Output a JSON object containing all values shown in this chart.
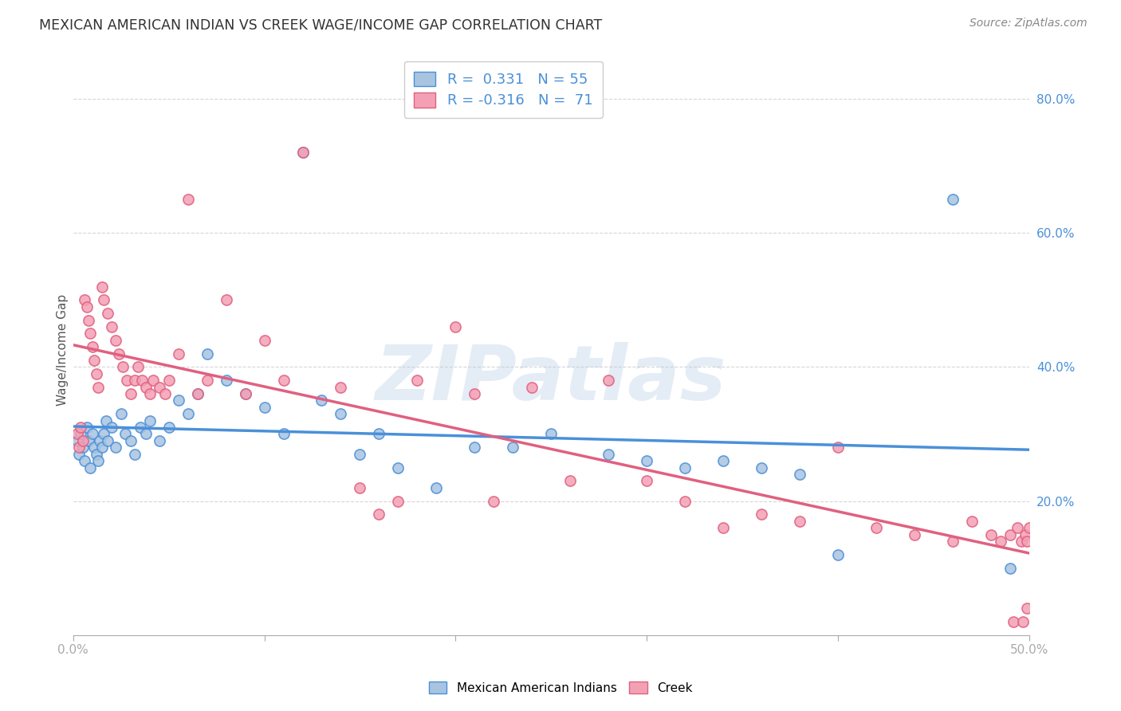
{
  "title": "MEXICAN AMERICAN INDIAN VS CREEK WAGE/INCOME GAP CORRELATION CHART",
  "source": "Source: ZipAtlas.com",
  "xlabel": "",
  "ylabel": "Wage/Income Gap",
  "xlim": [
    0.0,
    0.5
  ],
  "ylim": [
    0.0,
    0.85
  ],
  "xticks": [
    0.0,
    0.1,
    0.2,
    0.3,
    0.4,
    0.5
  ],
  "xtick_labels": [
    "0.0%",
    "",
    "",
    "",
    "",
    "50.0%"
  ],
  "yticks": [
    0.2,
    0.4,
    0.6,
    0.8
  ],
  "ytick_labels": [
    "20.0%",
    "40.0%",
    "60.0%",
    "80.0%"
  ],
  "blue_R": 0.331,
  "blue_N": 55,
  "pink_R": -0.316,
  "pink_N": 71,
  "blue_color": "#a8c4e0",
  "pink_color": "#f4a0b4",
  "blue_line_color": "#4a90d9",
  "pink_line_color": "#e06080",
  "legend_label_blue": "Mexican American Indians",
  "legend_label_pink": "Creek",
  "watermark": "ZIPatlas",
  "grid_color": "#cccccc",
  "background_color": "#ffffff",
  "blue_scatter_x": [
    0.002,
    0.003,
    0.004,
    0.005,
    0.006,
    0.007,
    0.008,
    0.009,
    0.01,
    0.011,
    0.012,
    0.013,
    0.014,
    0.015,
    0.016,
    0.017,
    0.018,
    0.02,
    0.022,
    0.025,
    0.027,
    0.03,
    0.032,
    0.035,
    0.038,
    0.04,
    0.045,
    0.05,
    0.055,
    0.06,
    0.065,
    0.07,
    0.08,
    0.09,
    0.1,
    0.11,
    0.12,
    0.13,
    0.14,
    0.15,
    0.16,
    0.17,
    0.19,
    0.21,
    0.23,
    0.25,
    0.28,
    0.3,
    0.32,
    0.34,
    0.36,
    0.38,
    0.4,
    0.46,
    0.49
  ],
  "blue_scatter_y": [
    0.29,
    0.27,
    0.3,
    0.28,
    0.26,
    0.31,
    0.29,
    0.25,
    0.3,
    0.28,
    0.27,
    0.26,
    0.29,
    0.28,
    0.3,
    0.32,
    0.29,
    0.31,
    0.28,
    0.33,
    0.3,
    0.29,
    0.27,
    0.31,
    0.3,
    0.32,
    0.29,
    0.31,
    0.35,
    0.33,
    0.36,
    0.42,
    0.38,
    0.36,
    0.34,
    0.3,
    0.72,
    0.35,
    0.33,
    0.27,
    0.3,
    0.25,
    0.22,
    0.28,
    0.28,
    0.3,
    0.27,
    0.26,
    0.25,
    0.26,
    0.25,
    0.24,
    0.12,
    0.65,
    0.1
  ],
  "pink_scatter_x": [
    0.002,
    0.003,
    0.004,
    0.005,
    0.006,
    0.007,
    0.008,
    0.009,
    0.01,
    0.011,
    0.012,
    0.013,
    0.015,
    0.016,
    0.018,
    0.02,
    0.022,
    0.024,
    0.026,
    0.028,
    0.03,
    0.032,
    0.034,
    0.036,
    0.038,
    0.04,
    0.042,
    0.045,
    0.048,
    0.05,
    0.055,
    0.06,
    0.065,
    0.07,
    0.08,
    0.09,
    0.1,
    0.11,
    0.12,
    0.14,
    0.15,
    0.16,
    0.17,
    0.18,
    0.2,
    0.21,
    0.22,
    0.24,
    0.26,
    0.28,
    0.3,
    0.32,
    0.34,
    0.36,
    0.38,
    0.4,
    0.42,
    0.44,
    0.46,
    0.47,
    0.48,
    0.485,
    0.49,
    0.492,
    0.494,
    0.496,
    0.497,
    0.498,
    0.499,
    0.499,
    0.5
  ],
  "pink_scatter_y": [
    0.3,
    0.28,
    0.31,
    0.29,
    0.5,
    0.49,
    0.47,
    0.45,
    0.43,
    0.41,
    0.39,
    0.37,
    0.52,
    0.5,
    0.48,
    0.46,
    0.44,
    0.42,
    0.4,
    0.38,
    0.36,
    0.38,
    0.4,
    0.38,
    0.37,
    0.36,
    0.38,
    0.37,
    0.36,
    0.38,
    0.42,
    0.65,
    0.36,
    0.38,
    0.5,
    0.36,
    0.44,
    0.38,
    0.72,
    0.37,
    0.22,
    0.18,
    0.2,
    0.38,
    0.46,
    0.36,
    0.2,
    0.37,
    0.23,
    0.38,
    0.23,
    0.2,
    0.16,
    0.18,
    0.17,
    0.28,
    0.16,
    0.15,
    0.14,
    0.17,
    0.15,
    0.14,
    0.15,
    0.02,
    0.16,
    0.14,
    0.02,
    0.15,
    0.04,
    0.14,
    0.16
  ]
}
